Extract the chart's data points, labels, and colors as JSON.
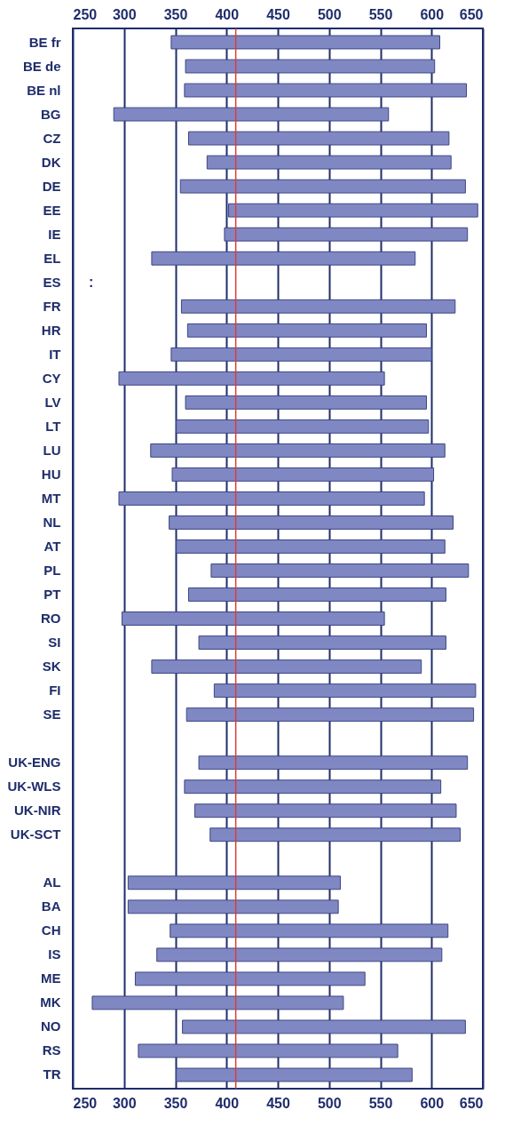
{
  "chart_data": {
    "type": "bar",
    "orientation": "horizontal",
    "categories": [
      "BE fr",
      "BE de",
      "BE nl",
      "BG",
      "CZ",
      "DK",
      "DE",
      "EE",
      "IE",
      "EL",
      "ES",
      "FR",
      "HR",
      "IT",
      "CY",
      "LV",
      "LT",
      "LU",
      "HU",
      "MT",
      "NL",
      "AT",
      "PL",
      "PT",
      "RO",
      "SI",
      "SK",
      "FI",
      "SE",
      null,
      "UK-ENG",
      "UK-WLS",
      "UK-NIR",
      "UK-SCT",
      null,
      "AL",
      "BA",
      "CH",
      "IS",
      "ME",
      "MK",
      "NO",
      "RS",
      "TR"
    ],
    "base": [
      346,
      360,
      359,
      290,
      363,
      381,
      355,
      402,
      398,
      327,
      null,
      356,
      362,
      346,
      295,
      360,
      351,
      326,
      347,
      295,
      344,
      351,
      385,
      363,
      298,
      373,
      327,
      388,
      361,
      null,
      373,
      359,
      369,
      384,
      null,
      304,
      304,
      345,
      332,
      311,
      269,
      357,
      314,
      351
    ],
    "values": [
      262,
      243,
      275,
      268,
      254,
      238,
      278,
      243,
      237,
      257,
      null,
      267,
      233,
      254,
      259,
      235,
      246,
      287,
      255,
      298,
      277,
      262,
      251,
      251,
      256,
      241,
      263,
      255,
      280,
      null,
      262,
      250,
      255,
      244,
      null,
      207,
      205,
      271,
      278,
      224,
      245,
      276,
      253,
      230
    ],
    "color": "#8088c4",
    "xlim": [
      250,
      650
    ],
    "xticks": [
      250,
      300,
      350,
      400,
      450,
      500,
      550,
      600,
      650
    ],
    "x2lim": [
      250,
      650
    ],
    "x2ticks": [
      250,
      300,
      350,
      400,
      450,
      500,
      550,
      600,
      650
    ],
    "grid": "x",
    "ref_lines": [
      {
        "axis": "x",
        "value": 409,
        "color": "#e03a3a"
      }
    ],
    "value_labels": [
      null,
      null,
      null,
      null,
      null,
      null,
      null,
      null,
      null,
      null,
      ":",
      null,
      null,
      null,
      null,
      null,
      null,
      null,
      null,
      null,
      null,
      null,
      null,
      null,
      null,
      null,
      null,
      null,
      null,
      null,
      null,
      null,
      null,
      null,
      null,
      null,
      null,
      null,
      null,
      null,
      null,
      null,
      null,
      null
    ]
  }
}
